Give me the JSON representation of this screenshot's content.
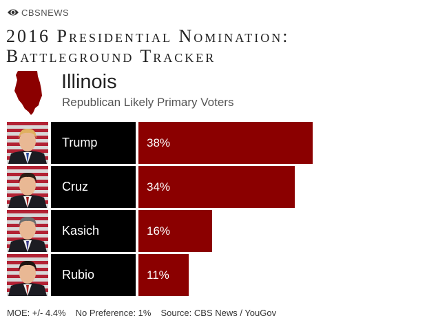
{
  "brand": {
    "name": "CBSNEWS",
    "icon": "cbs-eye-icon"
  },
  "title": "2016 Presidential Nomination: Battleground Tracker",
  "state": {
    "name": "Illinois",
    "icon": "illinois-map-icon",
    "color": "#8b0000"
  },
  "subtitle": "Republican Likely Primary Voters",
  "colors": {
    "bar": "#8b0000",
    "name_box": "#000000"
  },
  "chart_data": {
    "type": "bar",
    "orientation": "horizontal",
    "categories": [
      "Trump",
      "Cruz",
      "Kasich",
      "Rubio"
    ],
    "values": [
      38,
      34,
      16,
      11
    ],
    "value_labels": [
      "38%",
      "34%",
      "16%",
      "11%"
    ],
    "xlim": [
      0,
      60
    ],
    "grid": false,
    "legend": "none"
  },
  "candidates": [
    {
      "name": "Trump",
      "value_label": "38%",
      "photo_icon": "trump-photo-icon",
      "hair": "#e0b060",
      "tie": "#2a4a9a"
    },
    {
      "name": "Cruz",
      "value_label": "34%",
      "photo_icon": "cruz-photo-icon",
      "hair": "#2a1e16",
      "tie": "#a02020"
    },
    {
      "name": "Kasich",
      "value_label": "16%",
      "photo_icon": "kasich-photo-icon",
      "hair": "#6e6e6e",
      "tie": "#3a3a8a"
    },
    {
      "name": "Rubio",
      "value_label": "11%",
      "photo_icon": "rubio-photo-icon",
      "hair": "#1e1612",
      "tie": "#b02828"
    }
  ],
  "footer": {
    "moe": "MOE: +/- 4.4%",
    "no_preference": "No Preference: 1%",
    "source": "Source: CBS News / YouGov"
  }
}
